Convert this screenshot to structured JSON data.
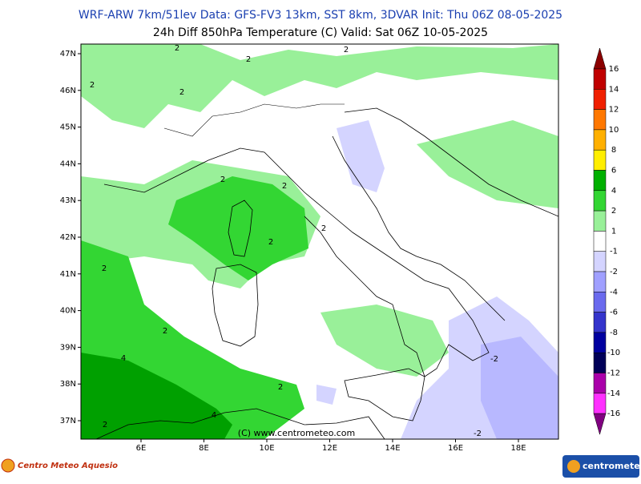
{
  "header": {
    "line1": "WRF-ARW 7km/51lev   Data: GFS-FV3 13km, SST 8km, 3DVAR   Init: Thu 06Z 08-05-2025",
    "line2": "24h Diff 850hPa Temperature (C)  Valid: Sat 06Z 10-05-2025"
  },
  "map": {
    "lat_labels": [
      "47N",
      "46N",
      "45N",
      "44N",
      "43N",
      "42N",
      "41N",
      "40N",
      "39N",
      "38N",
      "37N"
    ],
    "lon_labels": [
      "6E",
      "8E",
      "10E",
      "12E",
      "14E",
      "16E",
      "18E"
    ],
    "copyright": "(C) www.centrometeo.com",
    "contour_labels": [
      2,
      2,
      2,
      2,
      2,
      2,
      2,
      2,
      2,
      2,
      2,
      2,
      4,
      4,
      2,
      -2,
      -2
    ]
  },
  "colorbar": {
    "labels": [
      16,
      14,
      12,
      10,
      8,
      6,
      4,
      2,
      1,
      -1,
      -2,
      -4,
      -6,
      -8,
      -10,
      -12,
      -14,
      -16
    ],
    "colors": [
      "#8b0000",
      "#c00000",
      "#f02000",
      "#ff7800",
      "#ffb000",
      "#ffee00",
      "#00b000",
      "#33d633",
      "#99f099",
      "#ffffff",
      "#d4d4ff",
      "#a0a0ff",
      "#6a6aee",
      "#3434cc",
      "#0000a0",
      "#000058",
      "#aa00aa",
      "#ff30ff",
      "#800080"
    ]
  },
  "footer": {
    "left_logo": "Centro Meteo Aquesio",
    "right_logo": "centrometeo"
  }
}
